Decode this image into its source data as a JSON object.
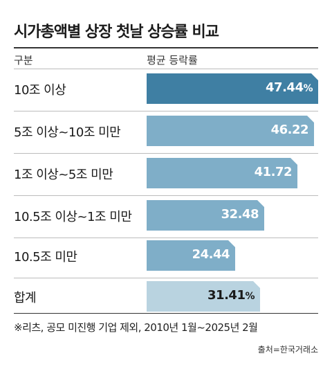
{
  "title": "시가총액별 상장 첫날 상승률 비교",
  "header": {
    "left": "구분",
    "right": "평균 등락률"
  },
  "colors": {
    "top": "#3f7fa3",
    "mid": "#7faec8",
    "total": "#b9d3e0"
  },
  "chart_data": {
    "type": "bar",
    "categories": [
      "10조 이상",
      "5조 이상~10조 미만",
      "1조 이상~5조 미만",
      "10.5조 이상~1조 미만",
      "10.5조 미만",
      "합계"
    ],
    "values": [
      47.44,
      46.22,
      41.72,
      32.48,
      24.44,
      31.41
    ],
    "value_labels": [
      "47.44",
      "46.22",
      "41.72",
      "32.48",
      "24.44",
      "31.41"
    ],
    "unit": "%",
    "unit_shown_on": [
      0,
      5
    ],
    "title": "시가총액별 상장 첫날 상승률 비교",
    "xlabel": "구분",
    "ylabel": "평균 등락률",
    "ylim": [
      0,
      47.44
    ]
  },
  "footnote": "※리츠, 공모 미진행 기업 제외, 2010년 1월~2025년 2월",
  "source": "출처=한국거래소"
}
